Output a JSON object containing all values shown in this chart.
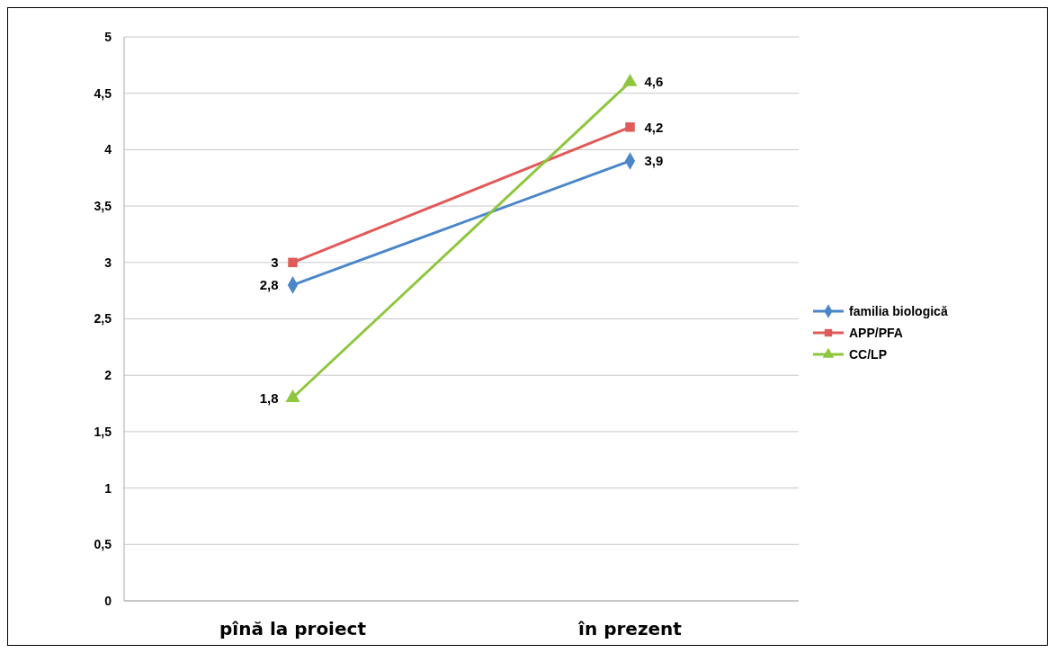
{
  "chart_data": {
    "type": "line",
    "categories": [
      "pînă la proiect",
      "în prezent"
    ],
    "series": [
      {
        "name": "familia biologică",
        "color": "#4a86c8",
        "marker": "diamond",
        "values": [
          2.8,
          3.9
        ],
        "value_labels": [
          "2,8",
          "3,9"
        ]
      },
      {
        "name": "APP/PFA",
        "color": "#e05a5a",
        "marker": "square",
        "values": [
          3,
          4.2
        ],
        "value_labels": [
          "3",
          "4,2"
        ]
      },
      {
        "name": "CC/LP",
        "color": "#8ec63f",
        "marker": "triangle",
        "values": [
          1.8,
          4.6
        ],
        "value_labels": [
          "1,8",
          "4,6"
        ]
      }
    ],
    "ylim": [
      0,
      5
    ],
    "yticks": [
      {
        "value": 0,
        "label": "0"
      },
      {
        "value": 0.5,
        "label": "0,5"
      },
      {
        "value": 1,
        "label": "1"
      },
      {
        "value": 1.5,
        "label": "1,5"
      },
      {
        "value": 2,
        "label": "2"
      },
      {
        "value": 2.5,
        "label": "2,5"
      },
      {
        "value": 3,
        "label": "3"
      },
      {
        "value": 3.5,
        "label": "3,5"
      },
      {
        "value": 4,
        "label": "4"
      },
      {
        "value": 4.5,
        "label": "4,5"
      },
      {
        "value": 5,
        "label": "5"
      }
    ],
    "grid": "y",
    "legend": "right"
  }
}
